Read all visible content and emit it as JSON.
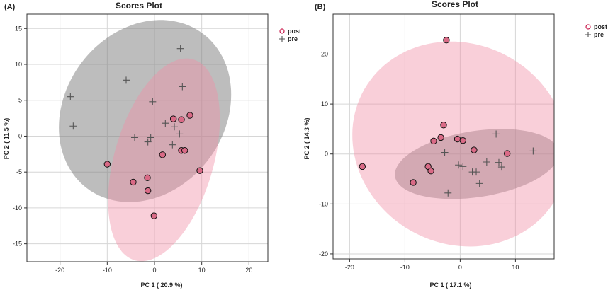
{
  "chart_data": [
    {
      "type": "scatter",
      "panel_label": "(A)",
      "title": "Scores Plot",
      "xlabel": "PC 1 ( 20.9 %)",
      "ylabel": "PC 2 ( 11.5 %)",
      "xlim": [
        -27,
        24
      ],
      "ylim": [
        -17.5,
        17
      ],
      "xticks": [
        -20,
        -10,
        0,
        10,
        20
      ],
      "yticks": [
        -15,
        -10,
        -5,
        0,
        5,
        10,
        15
      ],
      "grid": true,
      "legend_position": "top-right",
      "series": [
        {
          "name": "post",
          "marker": "circle",
          "color": "#c9184a",
          "ellipse_fill": "rgba(240,140,165,0.42)",
          "ellipse": {
            "cx": 2,
            "cy": -3.3,
            "rx": 15.6,
            "ry": 9.8,
            "angle_deg": 57
          },
          "points": [
            [
              4,
              2.4
            ],
            [
              5.7,
              2.3
            ],
            [
              7.5,
              2.9
            ],
            [
              1.7,
              -2.6
            ],
            [
              5.7,
              -2
            ],
            [
              6.4,
              -2
            ],
            [
              9.6,
              -4.8
            ],
            [
              -10,
              -3.9
            ],
            [
              -1.5,
              -5.8
            ],
            [
              -4.5,
              -6.4
            ],
            [
              -1.4,
              -7.6
            ],
            [
              -0.1,
              -11.1
            ]
          ]
        },
        {
          "name": "pre",
          "marker": "plus",
          "color": "#555555",
          "ellipse_fill": "rgba(128,128,128,0.52)",
          "ellipse": {
            "cx": -2,
            "cy": 3.5,
            "rx": 18.5,
            "ry": 12.3,
            "angle_deg": 13
          },
          "points": [
            [
              -17.8,
              5.5
            ],
            [
              -17.2,
              1.4
            ],
            [
              -6,
              7.8
            ],
            [
              5.5,
              12.2
            ],
            [
              5.9,
              6.9
            ],
            [
              -0.4,
              4.8
            ],
            [
              2.3,
              1.8
            ],
            [
              -4.2,
              -0.2
            ],
            [
              -0.8,
              -0.2
            ],
            [
              -1.4,
              -0.8
            ],
            [
              4.2,
              1.3
            ],
            [
              5.3,
              0.3
            ],
            [
              3.8,
              -1.2
            ]
          ]
        }
      ]
    },
    {
      "type": "scatter",
      "panel_label": "(B)",
      "title": "Scores Plot",
      "xlabel": "PC 1 ( 17.1 %)",
      "ylabel": "PC 2 ( 14.3 %)",
      "xlim": [
        -23,
        17
      ],
      "ylim": [
        -21,
        28
      ],
      "xticks": [
        -20,
        -10,
        0,
        10
      ],
      "yticks": [
        -20,
        -10,
        0,
        10,
        20
      ],
      "grid": true,
      "legend_position": "top-right",
      "series": [
        {
          "name": "post",
          "marker": "circle",
          "color": "#c9184a",
          "ellipse_fill": "rgba(240,140,165,0.42)",
          "ellipse": {
            "cx": 0,
            "cy": 2,
            "rx": 19,
            "ry": 21,
            "angle_deg": 30
          },
          "points": [
            [
              -2.5,
              22.8
            ],
            [
              -3,
              5.8
            ],
            [
              -3.5,
              3.3
            ],
            [
              -4.8,
              2.6
            ],
            [
              -0.5,
              3
            ],
            [
              0.5,
              2.7
            ],
            [
              2.5,
              0.8
            ],
            [
              8.5,
              0.1
            ],
            [
              -5.8,
              -2.5
            ],
            [
              -5.3,
              -3.4
            ],
            [
              -8.5,
              -5.7
            ],
            [
              -17.7,
              -2.5
            ]
          ]
        },
        {
          "name": "pre",
          "marker": "plus",
          "color": "#555555",
          "ellipse_fill": "rgba(128,128,128,0.52)",
          "ellipse": {
            "cx": 3,
            "cy": -2,
            "rx": 15,
            "ry": 6.6,
            "angle_deg": 10
          },
          "points": [
            [
              6.5,
              4
            ],
            [
              13.2,
              0.6
            ],
            [
              -2.8,
              0.3
            ],
            [
              -0.3,
              -2.2
            ],
            [
              0.5,
              -2.5
            ],
            [
              2.2,
              -3.6
            ],
            [
              2.9,
              -3.6
            ],
            [
              4.8,
              -1.6
            ],
            [
              7,
              -1.7
            ],
            [
              7.5,
              -2.6
            ],
            [
              -2.2,
              -7.8
            ],
            [
              3.5,
              -5.9
            ]
          ]
        }
      ]
    }
  ]
}
